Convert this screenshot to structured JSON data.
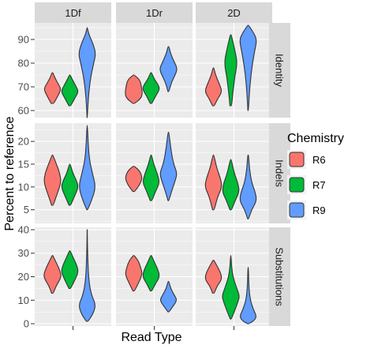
{
  "chart_data": {
    "type": "violin",
    "xlabel": "Read Type",
    "ylabel": "Percent to reference",
    "columns": [
      "1Df",
      "1Dr",
      "2D"
    ],
    "rows": [
      {
        "name": "Identity",
        "ylim": [
          57,
          97
        ],
        "ticks": [
          60,
          70,
          80,
          90
        ]
      },
      {
        "name": "Indels",
        "ylim": [
          2,
          24
        ],
        "ticks": [
          5,
          10,
          15,
          20
        ]
      },
      {
        "name": "Substitutions",
        "ylim": [
          -1,
          41
        ],
        "ticks": [
          0,
          10,
          20,
          30,
          40
        ]
      }
    ],
    "legend": {
      "title": "Chemistry",
      "position": "right",
      "items": [
        {
          "label": "R6",
          "color": "#F8766D"
        },
        {
          "label": "R7",
          "color": "#00BA38"
        },
        {
          "label": "R9",
          "color": "#619CFF"
        }
      ]
    },
    "grid": true,
    "panel_background": "#EBEBEB",
    "strip_background": "#D9D9D9",
    "violins": {
      "Identity": {
        "1Df": {
          "R6": [
            [
              63,
              0.15
            ],
            [
              66,
              0.6
            ],
            [
              69,
              1.0
            ],
            [
              71,
              0.7
            ],
            [
              74,
              0.25
            ],
            [
              76,
              0.05
            ]
          ],
          "R7": [
            [
              62,
              0.1
            ],
            [
              65,
              0.55
            ],
            [
              68,
              1.0
            ],
            [
              70,
              0.75
            ],
            [
              73,
              0.3
            ],
            [
              75,
              0.05
            ]
          ],
          "R9": [
            [
              57,
              0.02
            ],
            [
              62,
              0.08
            ],
            [
              68,
              0.2
            ],
            [
              74,
              0.4
            ],
            [
              80,
              0.75
            ],
            [
              84,
              1.0
            ],
            [
              88,
              0.7
            ],
            [
              92,
              0.2
            ],
            [
              95,
              0.02
            ]
          ]
        },
        "1Dr": {
          "R6": [
            [
              63,
              0.1
            ],
            [
              65,
              0.8
            ],
            [
              67,
              1.0
            ],
            [
              70,
              0.9
            ],
            [
              73,
              0.7
            ],
            [
              75,
              0.05
            ]
          ],
          "R7": [
            [
              63,
              0.1
            ],
            [
              66,
              0.5
            ],
            [
              69,
              1.0
            ],
            [
              71,
              0.8
            ],
            [
              73,
              0.4
            ],
            [
              76,
              0.05
            ]
          ],
          "R9": [
            [
              68,
              0.05
            ],
            [
              72,
              0.35
            ],
            [
              76,
              0.9
            ],
            [
              78,
              1.0
            ],
            [
              81,
              0.6
            ],
            [
              84,
              0.25
            ],
            [
              87,
              0.05
            ]
          ]
        },
        "2D": {
          "R6": [
            [
              62,
              0.1
            ],
            [
              65,
              0.5
            ],
            [
              68,
              1.0
            ],
            [
              71,
              0.7
            ],
            [
              75,
              0.25
            ],
            [
              78,
              0.05
            ]
          ],
          "R7": [
            [
              62,
              0.1
            ],
            [
              68,
              0.25
            ],
            [
              74,
              0.45
            ],
            [
              80,
              0.75
            ],
            [
              85,
              0.5
            ],
            [
              89,
              0.25
            ],
            [
              92,
              0.05
            ]
          ],
          "R9": [
            [
              60,
              0.03
            ],
            [
              68,
              0.15
            ],
            [
              76,
              0.35
            ],
            [
              82,
              0.6
            ],
            [
              86,
              0.8
            ],
            [
              90,
              1.0
            ],
            [
              93,
              0.6
            ],
            [
              96,
              0.05
            ]
          ]
        }
      },
      "Indels": {
        "1Df": {
          "R6": [
            [
              6,
              0.1
            ],
            [
              8,
              0.45
            ],
            [
              11,
              1.0
            ],
            [
              13,
              0.85
            ],
            [
              15,
              0.45
            ],
            [
              17,
              0.05
            ]
          ],
          "R7": [
            [
              6,
              0.1
            ],
            [
              8,
              0.55
            ],
            [
              10,
              1.0
            ],
            [
              11.5,
              0.75
            ],
            [
              13,
              0.35
            ],
            [
              15,
              0.05
            ]
          ],
          "R9": [
            [
              5,
              0.05
            ],
            [
              7,
              0.5
            ],
            [
              10,
              1.0
            ],
            [
              13,
              0.6
            ],
            [
              16,
              0.25
            ],
            [
              20,
              0.1
            ],
            [
              23.5,
              0.02
            ]
          ]
        },
        "1Dr": {
          "R6": [
            [
              9,
              0.1
            ],
            [
              10.5,
              0.7
            ],
            [
              12,
              1.0
            ],
            [
              13.5,
              0.7
            ],
            [
              14.5,
              0.1
            ]
          ],
          "R7": [
            [
              7,
              0.1
            ],
            [
              9,
              0.5
            ],
            [
              11,
              1.0
            ],
            [
              13,
              0.7
            ],
            [
              15,
              0.3
            ],
            [
              17,
              0.05
            ]
          ],
          "R9": [
            [
              7,
              0.05
            ],
            [
              9,
              0.35
            ],
            [
              11.5,
              0.8
            ],
            [
              13,
              1.0
            ],
            [
              15,
              0.6
            ],
            [
              18,
              0.3
            ],
            [
              22,
              0.05
            ]
          ]
        },
        "2D": {
          "R6": [
            [
              5,
              0.1
            ],
            [
              8,
              0.5
            ],
            [
              10,
              1.0
            ],
            [
              12,
              0.8
            ],
            [
              14,
              0.4
            ],
            [
              17,
              0.05
            ]
          ],
          "R7": [
            [
              5,
              0.1
            ],
            [
              7,
              0.5
            ],
            [
              9,
              1.0
            ],
            [
              11,
              0.8
            ],
            [
              13,
              0.4
            ],
            [
              16,
              0.05
            ]
          ],
          "R9": [
            [
              3,
              0.05
            ],
            [
              5,
              0.4
            ],
            [
              7,
              1.0
            ],
            [
              9,
              0.8
            ],
            [
              11,
              0.4
            ],
            [
              14,
              0.15
            ],
            [
              17,
              0.05
            ]
          ]
        }
      },
      "Substitutions": {
        "1Df": {
          "R6": [
            [
              13,
              0.1
            ],
            [
              16,
              0.4
            ],
            [
              19,
              0.9
            ],
            [
              21,
              1.0
            ],
            [
              24,
              0.7
            ],
            [
              27,
              0.3
            ],
            [
              29,
              0.05
            ]
          ],
          "R7": [
            [
              15,
              0.1
            ],
            [
              18,
              0.5
            ],
            [
              22,
              1.0
            ],
            [
              25,
              0.8
            ],
            [
              28,
              0.4
            ],
            [
              31,
              0.05
            ]
          ],
          "R9": [
            [
              1,
              0.1
            ],
            [
              4,
              0.65
            ],
            [
              8,
              1.0
            ],
            [
              12,
              0.5
            ],
            [
              18,
              0.2
            ],
            [
              26,
              0.08
            ],
            [
              34,
              0.03
            ],
            [
              40,
              0.01
            ]
          ]
        },
        "1Dr": {
          "R6": [
            [
              14,
              0.1
            ],
            [
              17,
              0.5
            ],
            [
              21,
              1.0
            ],
            [
              24,
              0.8
            ],
            [
              27,
              0.5
            ],
            [
              29,
              0.05
            ]
          ],
          "R7": [
            [
              14,
              0.1
            ],
            [
              17,
              0.5
            ],
            [
              20,
              1.0
            ],
            [
              23,
              0.8
            ],
            [
              26,
              0.4
            ],
            [
              29,
              0.05
            ]
          ],
          "R9": [
            [
              5,
              0.05
            ],
            [
              7,
              0.45
            ],
            [
              10,
              1.0
            ],
            [
              12,
              0.7
            ],
            [
              15,
              0.25
            ],
            [
              18,
              0.05
            ]
          ]
        },
        "2D": {
          "R6": [
            [
              13,
              0.1
            ],
            [
              16,
              0.4
            ],
            [
              19,
              1.0
            ],
            [
              22,
              0.8
            ],
            [
              25,
              0.35
            ],
            [
              27,
              0.05
            ]
          ],
          "R7": [
            [
              2,
              0.05
            ],
            [
              5,
              0.4
            ],
            [
              10,
              0.9
            ],
            [
              12,
              1.0
            ],
            [
              16,
              0.6
            ],
            [
              20,
              0.25
            ],
            [
              24,
              0.1
            ],
            [
              29,
              0.02
            ]
          ],
          "R9": [
            [
              0,
              0.05
            ],
            [
              1,
              0.6
            ],
            [
              3,
              1.0
            ],
            [
              6,
              0.6
            ],
            [
              10,
              0.25
            ],
            [
              15,
              0.1
            ],
            [
              20,
              0.05
            ],
            [
              24,
              0.02
            ]
          ]
        }
      }
    }
  }
}
